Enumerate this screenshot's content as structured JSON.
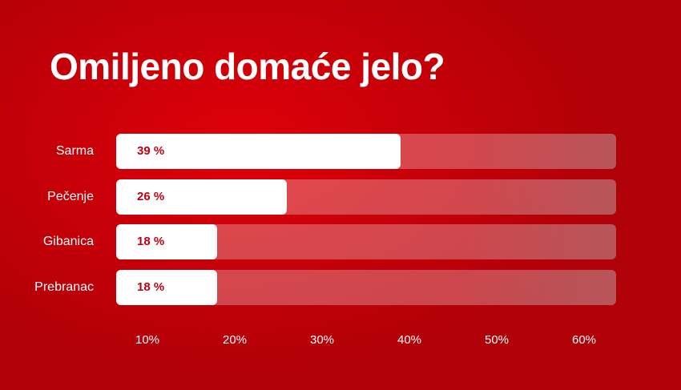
{
  "chart_data": {
    "type": "bar",
    "orientation": "horizontal",
    "title": "Omiljeno domaće jelo?",
    "categories": [
      "Sarma",
      "Pečenje",
      "Gibanica",
      "Prebranac"
    ],
    "values": [
      39,
      26,
      18,
      18
    ],
    "value_labels": [
      "39 %",
      "26 %",
      "18 %",
      "18 %"
    ],
    "x_ticks": [
      "10%",
      "20%",
      "30%",
      "40%",
      "50%",
      "60%"
    ],
    "xlim": [
      0,
      60
    ],
    "grid": false,
    "colors": {
      "background": "#c80008",
      "bar": "#ffffff",
      "track": "#e25a5e",
      "value_text": "#c00010"
    }
  }
}
